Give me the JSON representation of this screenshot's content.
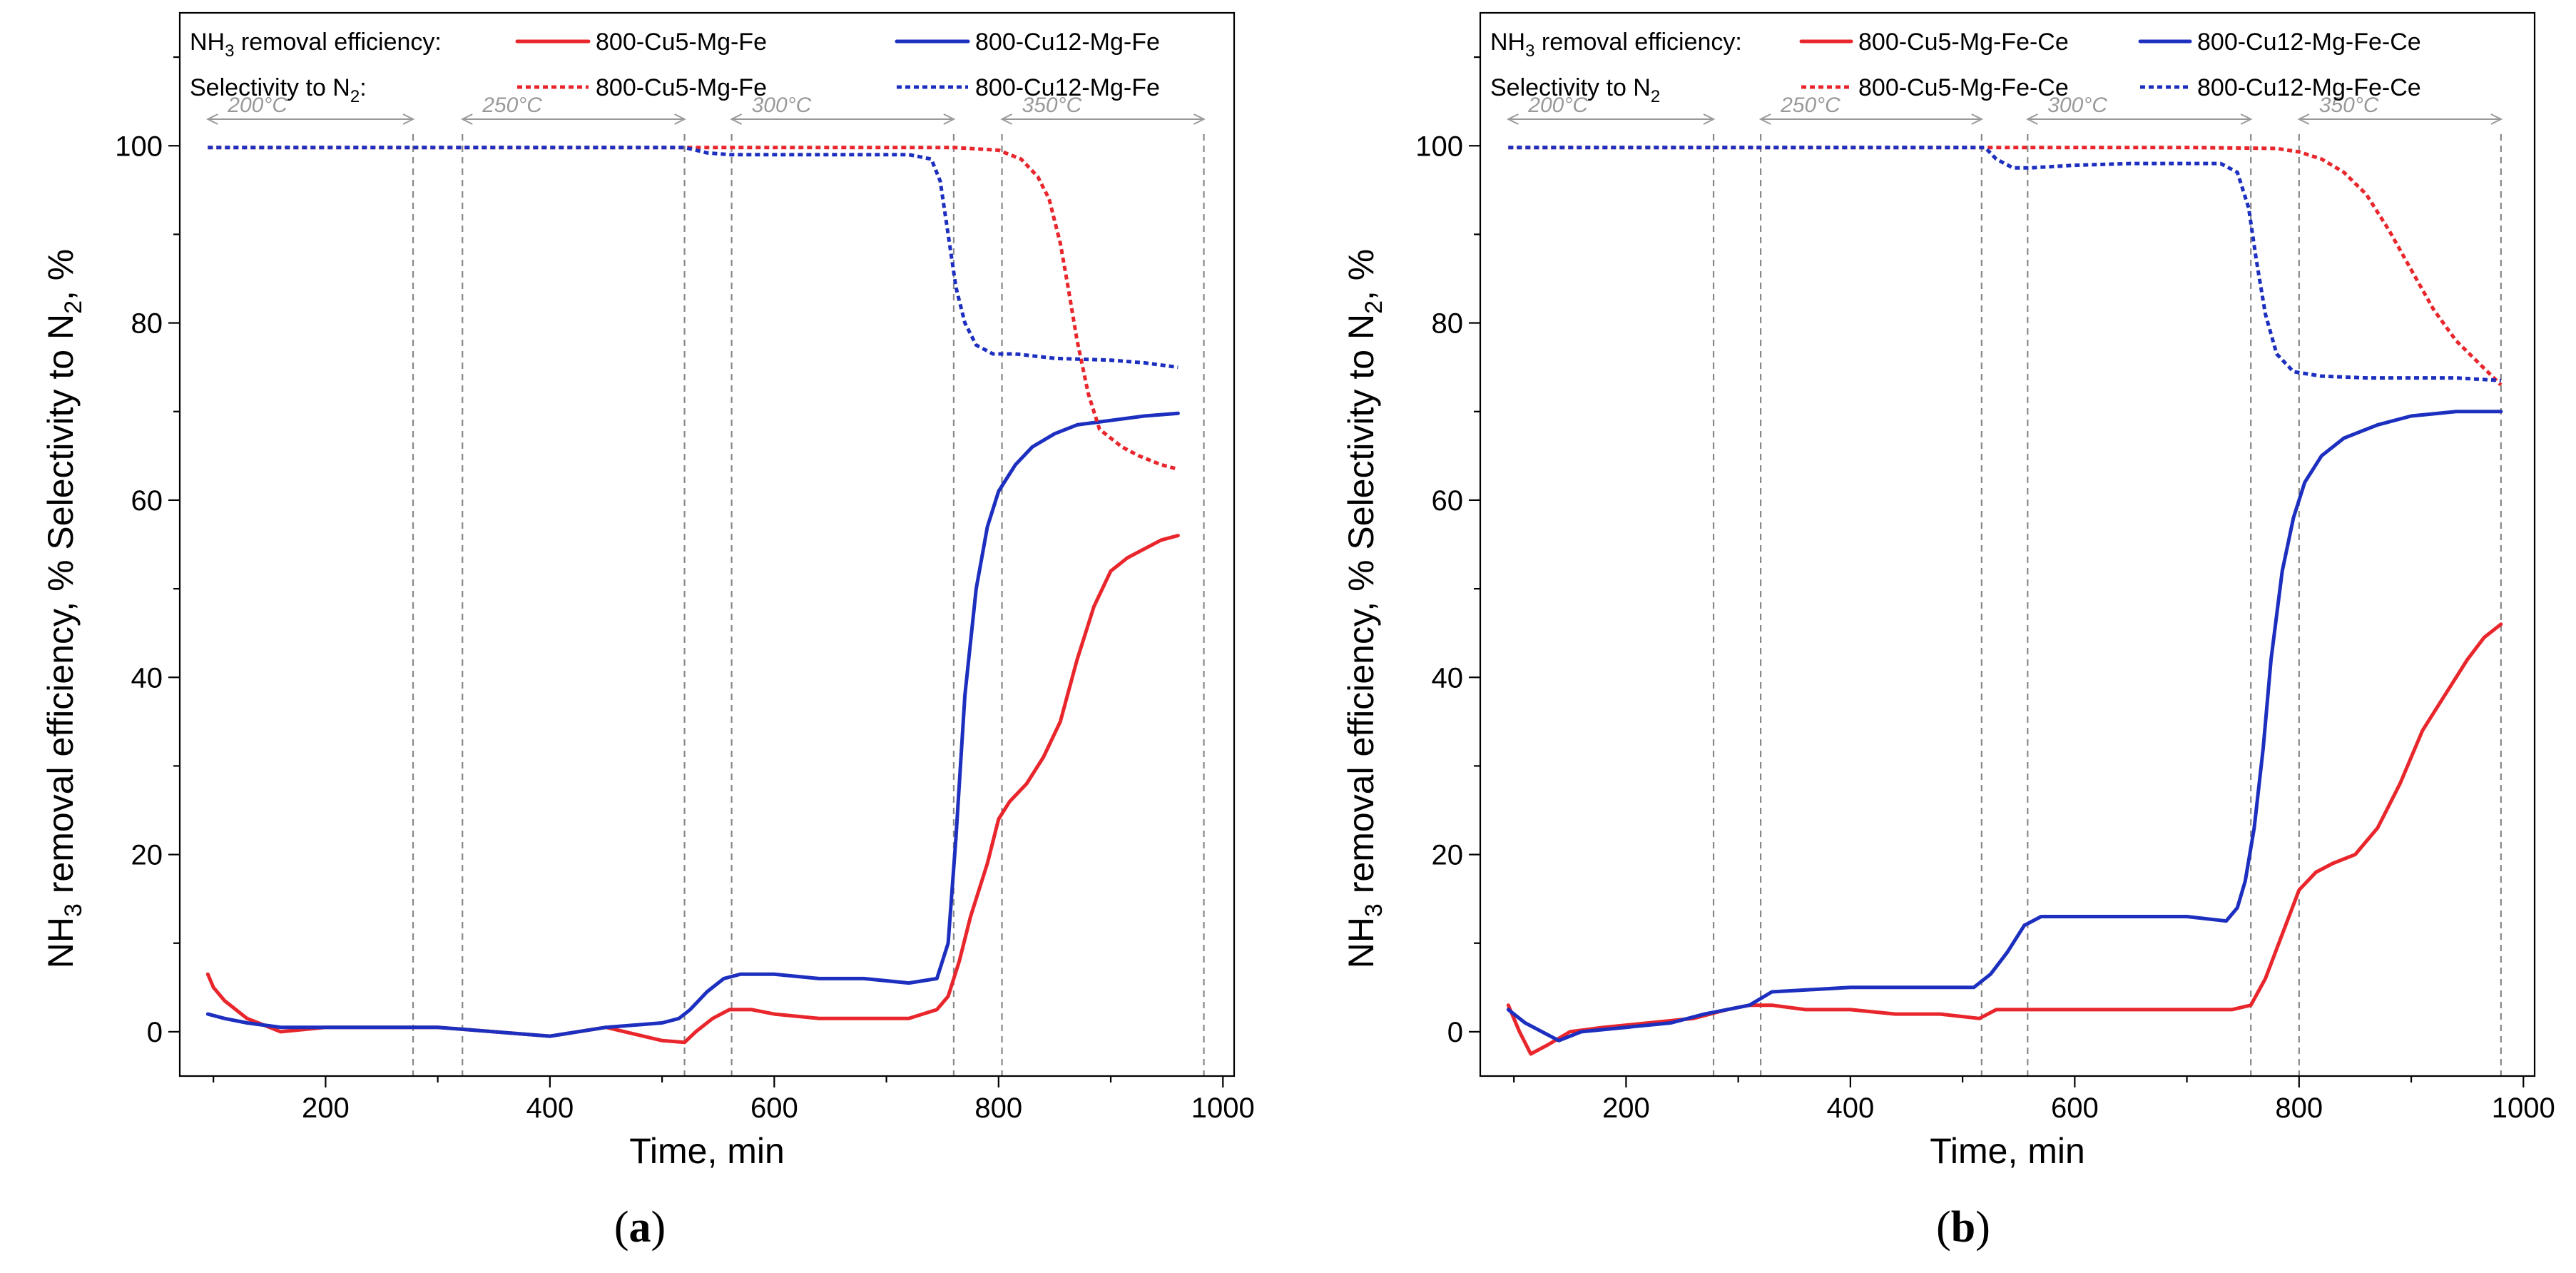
{
  "figure": {
    "colors": {
      "red": "#e8262c",
      "blue": "#1d2fbf",
      "grid_text": "#999999"
    }
  },
  "chart_data": [
    {
      "type": "line",
      "panel_label": "a",
      "xlabel": "Time, min",
      "ylabel": {
        "pre": "NH",
        "sub1": "3",
        "mid": " removal efficiency, %  Selectivity to N",
        "sub2": "2",
        "post": ", %"
      },
      "xlim": [
        70,
        1010
      ],
      "ylim": [
        -5,
        115
      ],
      "xticks": [
        200,
        400,
        600,
        800,
        1000
      ],
      "yticks": [
        0,
        20,
        40,
        60,
        80,
        100
      ],
      "legend": {
        "row1_label": {
          "pre": "NH",
          "sub": "3",
          "post": " removal efficiency:"
        },
        "row2_label": {
          "pre": "Selectivity to N",
          "sub": "2",
          "post": ":"
        },
        "entries": [
          "800-Cu5-Mg-Fe",
          "800-Cu12-Mg-Fe",
          "800-Cu5-Mg-Fe",
          "800-Cu12-Mg-Fe"
        ]
      },
      "temperature_zones": [
        {
          "label": "200°C",
          "from": 95,
          "to": 278
        },
        {
          "label": "250°C",
          "from": 322,
          "to": 520
        },
        {
          "label": "300°C",
          "from": 562,
          "to": 760
        },
        {
          "label": "350°C",
          "from": 803,
          "to": 983
        }
      ],
      "vlines": [
        278,
        322,
        520,
        562,
        760,
        803,
        983
      ],
      "series": [
        {
          "name": "800-Cu5-Mg-Fe",
          "metric": "NH3 removal efficiency",
          "color": "red",
          "style": "solid",
          "x": [
            95,
            100,
            110,
            130,
            160,
            200,
            250,
            300,
            350,
            400,
            450,
            500,
            520,
            530,
            545,
            560,
            580,
            600,
            640,
            680,
            720,
            745,
            755,
            765,
            775,
            790,
            800,
            810,
            825,
            840,
            855,
            870,
            885,
            900,
            915,
            930,
            945,
            960
          ],
          "y": [
            6.5,
            5,
            3.5,
            1.5,
            0,
            0.5,
            0.5,
            0.5,
            0,
            -0.5,
            0.5,
            -1,
            -1.2,
            0,
            1.5,
            2.5,
            2.5,
            2,
            1.5,
            1.5,
            1.5,
            2.5,
            4,
            8,
            13,
            19,
            24,
            26,
            28,
            31,
            35,
            42,
            48,
            52,
            53.5,
            54.5,
            55.5,
            56
          ]
        },
        {
          "name": "800-Cu12-Mg-Fe",
          "metric": "NH3 removal efficiency",
          "color": "blue",
          "style": "solid",
          "x": [
            95,
            110,
            130,
            160,
            200,
            250,
            300,
            350,
            400,
            450,
            500,
            515,
            525,
            540,
            555,
            570,
            600,
            640,
            680,
            720,
            745,
            755,
            762,
            770,
            780,
            790,
            800,
            815,
            830,
            850,
            870,
            900,
            930,
            960
          ],
          "y": [
            2,
            1.5,
            1,
            0.5,
            0.5,
            0.5,
            0.5,
            0,
            -0.5,
            0.5,
            1,
            1.5,
            2.5,
            4.5,
            6,
            6.5,
            6.5,
            6,
            6,
            5.5,
            6,
            10,
            22,
            38,
            50,
            57,
            61,
            64,
            66,
            67.5,
            68.5,
            69,
            69.5,
            69.8
          ]
        },
        {
          "name": "800-Cu5-Mg-Fe",
          "metric": "Selectivity to N2",
          "color": "red",
          "style": "dotted",
          "x": [
            95,
            200,
            300,
            400,
            500,
            600,
            700,
            760,
            800,
            820,
            835,
            845,
            855,
            862,
            870,
            880,
            890,
            900,
            910,
            925,
            945,
            960
          ],
          "y": [
            99.8,
            99.8,
            99.8,
            99.8,
            99.8,
            99.8,
            99.8,
            99.8,
            99.5,
            98.5,
            96.5,
            94,
            89,
            84,
            78,
            72,
            68,
            67,
            66,
            65,
            64,
            63.5
          ]
        },
        {
          "name": "800-Cu12-Mg-Fe",
          "metric": "Selectivity to N2",
          "color": "blue",
          "style": "dotted",
          "x": [
            95,
            200,
            300,
            400,
            500,
            520,
            540,
            560,
            600,
            660,
            720,
            740,
            748,
            755,
            762,
            770,
            780,
            795,
            815,
            850,
            900,
            930,
            960
          ],
          "y": [
            99.8,
            99.8,
            99.8,
            99.8,
            99.8,
            99.8,
            99.2,
            99,
            99,
            99,
            99,
            98.5,
            96,
            90,
            84,
            80,
            77.5,
            76.5,
            76.5,
            76,
            75.8,
            75.5,
            75
          ]
        }
      ]
    },
    {
      "type": "line",
      "panel_label": "b",
      "xlabel": "Time, min",
      "ylabel": {
        "pre": "NH",
        "sub1": "3",
        "mid": " removal efficiency, %  Selectivity to N",
        "sub2": "2",
        "post": ", %"
      },
      "xlim": [
        70,
        1010
      ],
      "ylim": [
        -5,
        115
      ],
      "xticks": [
        200,
        400,
        600,
        800,
        1000
      ],
      "yticks": [
        0,
        20,
        40,
        60,
        80,
        100
      ],
      "legend": {
        "row1_label": {
          "pre": "NH",
          "sub": "3",
          "post": " removal efficiency:"
        },
        "row2_label": {
          "pre": "Selectivity to N",
          "sub": "2",
          "post": ""
        },
        "entries": [
          "800-Cu5-Mg-Fe-Ce",
          "800-Cu12-Mg-Fe-Ce",
          "800-Cu5-Mg-Fe-Ce",
          "800-Cu12-Mg-Fe-Ce"
        ]
      },
      "temperature_zones": [
        {
          "label": "200°C",
          "from": 95,
          "to": 278
        },
        {
          "label": "250°C",
          "from": 320,
          "to": 517
        },
        {
          "label": "300°C",
          "from": 558,
          "to": 757
        },
        {
          "label": "350°C",
          "from": 800,
          "to": 980
        }
      ],
      "vlines": [
        278,
        320,
        517,
        558,
        757,
        800,
        980
      ],
      "series": [
        {
          "name": "800-Cu5-Mg-Fe-Ce",
          "metric": "NH3 removal efficiency",
          "color": "red",
          "style": "solid",
          "x": [
            95,
            105,
            115,
            130,
            150,
            180,
            220,
            260,
            290,
            310,
            330,
            360,
            400,
            440,
            480,
            515,
            530,
            560,
            600,
            650,
            700,
            740,
            757,
            770,
            785,
            800,
            815,
            830,
            850,
            870,
            890,
            910,
            930,
            950,
            965,
            980
          ],
          "y": [
            3,
            0,
            -2.5,
            -1.5,
            0,
            0.5,
            1,
            1.5,
            2.5,
            3,
            3,
            2.5,
            2.5,
            2,
            2,
            1.5,
            2.5,
            2.5,
            2.5,
            2.5,
            2.5,
            2.5,
            3,
            6,
            11,
            16,
            18,
            19,
            20,
            23,
            28,
            34,
            38,
            42,
            44.5,
            46
          ]
        },
        {
          "name": "800-Cu12-Mg-Fe-Ce",
          "metric": "NH3 removal efficiency",
          "color": "blue",
          "style": "solid",
          "x": [
            95,
            110,
            125,
            140,
            160,
            200,
            240,
            270,
            290,
            310,
            330,
            400,
            470,
            510,
            525,
            540,
            555,
            570,
            600,
            650,
            700,
            735,
            745,
            752,
            760,
            768,
            775,
            785,
            795,
            805,
            820,
            840,
            870,
            900,
            940,
            980
          ],
          "y": [
            2.5,
            1,
            0,
            -1,
            0,
            0.5,
            1,
            2,
            2.5,
            3,
            4.5,
            5,
            5,
            5,
            6.5,
            9,
            12,
            13,
            13,
            13,
            13,
            12.5,
            14,
            17,
            23,
            32,
            42,
            52,
            58,
            62,
            65,
            67,
            68.5,
            69.5,
            70,
            70
          ]
        },
        {
          "name": "800-Cu5-Mg-Fe-Ce",
          "metric": "Selectivity to N2",
          "color": "red",
          "style": "dotted",
          "x": [
            95,
            200,
            300,
            400,
            500,
            600,
            700,
            780,
            800,
            820,
            840,
            860,
            880,
            900,
            920,
            940,
            960,
            980
          ],
          "y": [
            99.8,
            99.8,
            99.8,
            99.8,
            99.8,
            99.8,
            99.8,
            99.7,
            99.3,
            98.5,
            97,
            94.5,
            90.5,
            86,
            81.5,
            78,
            75.5,
            73
          ]
        },
        {
          "name": "800-Cu12-Mg-Fe-Ce",
          "metric": "Selectivity to N2",
          "color": "blue",
          "style": "dotted",
          "x": [
            95,
            200,
            300,
            400,
            500,
            520,
            530,
            545,
            560,
            600,
            650,
            700,
            730,
            745,
            755,
            762,
            770,
            780,
            795,
            820,
            860,
            900,
            940,
            980
          ],
          "y": [
            99.8,
            99.8,
            99.8,
            99.8,
            99.8,
            99.8,
            98.5,
            97.5,
            97.5,
            97.8,
            98,
            98,
            98,
            97,
            93,
            87,
            81,
            76.5,
            74.5,
            74,
            73.8,
            73.8,
            73.8,
            73.5
          ]
        }
      ]
    }
  ]
}
